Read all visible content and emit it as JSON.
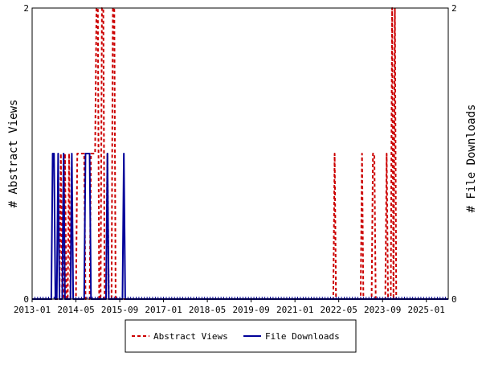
{
  "chart_data": {
    "type": "line",
    "y_left_label": "# Abstract Views",
    "y_right_label": "# File Downloads",
    "y_left_ticks": [
      "0",
      "2"
    ],
    "y_right_ticks": [
      "0",
      "2"
    ],
    "ylim": [
      0,
      2
    ],
    "x_tick_labels": [
      "2013-01",
      "2014-05",
      "2015-09",
      "2017-01",
      "2018-05",
      "2019-09",
      "2021-01",
      "2022-05",
      "2023-09",
      "2025-01"
    ],
    "x_tick_months": [
      0,
      16,
      32,
      48,
      64,
      80,
      96,
      112,
      128,
      144
    ],
    "xlim_months": [
      0,
      152
    ],
    "grid": false,
    "legend_position": "bottom-center",
    "series": [
      {
        "name": "Abstract Views",
        "color": "#cc0000",
        "style": "dashed",
        "points": [
          [
            0,
            0
          ],
          [
            10,
            0
          ],
          [
            10.5,
            1
          ],
          [
            11,
            0
          ],
          [
            11.5,
            0
          ],
          [
            12,
            1
          ],
          [
            12.5,
            0
          ],
          [
            13,
            0
          ],
          [
            13.5,
            1
          ],
          [
            14,
            0
          ],
          [
            16,
            0
          ],
          [
            16.5,
            1
          ],
          [
            17,
            1
          ],
          [
            18,
            1
          ],
          [
            19,
            1
          ],
          [
            19.5,
            0
          ],
          [
            21,
            0
          ],
          [
            21.5,
            1
          ],
          [
            22,
            1
          ],
          [
            23,
            1
          ],
          [
            23.5,
            2
          ],
          [
            24,
            2
          ],
          [
            24.5,
            0
          ],
          [
            25,
            0
          ],
          [
            25.5,
            2
          ],
          [
            26,
            2
          ],
          [
            26.5,
            0
          ],
          [
            27,
            0
          ],
          [
            27.5,
            1
          ],
          [
            28,
            0
          ],
          [
            29,
            0
          ],
          [
            29.5,
            2
          ],
          [
            30,
            2
          ],
          [
            30.5,
            0
          ],
          [
            31,
            0
          ],
          [
            32,
            0
          ],
          [
            40,
            0
          ],
          [
            96,
            0
          ],
          [
            110,
            0
          ],
          [
            110.5,
            1
          ],
          [
            111,
            0
          ],
          [
            120,
            0
          ],
          [
            120.5,
            1
          ],
          [
            121,
            0
          ],
          [
            124,
            0
          ],
          [
            124.5,
            1
          ],
          [
            125,
            1
          ],
          [
            125.5,
            0
          ],
          [
            129,
            0
          ],
          [
            129.5,
            1
          ],
          [
            130,
            0
          ],
          [
            131,
            0
          ],
          [
            131.5,
            2
          ],
          [
            132,
            0
          ],
          [
            132.5,
            2
          ],
          [
            133,
            0
          ],
          [
            140,
            0
          ],
          [
            152,
            0
          ]
        ]
      },
      {
        "name": "File Downloads",
        "color": "#000099",
        "style": "solid",
        "points": [
          [
            0,
            0
          ],
          [
            7,
            0
          ],
          [
            7.5,
            1
          ],
          [
            8,
            1
          ],
          [
            8.5,
            0
          ],
          [
            9,
            0
          ],
          [
            9.5,
            1
          ],
          [
            10,
            0
          ],
          [
            11,
            0
          ],
          [
            11.5,
            1
          ],
          [
            12,
            0
          ],
          [
            14,
            0
          ],
          [
            14.5,
            1
          ],
          [
            15,
            0
          ],
          [
            19,
            0
          ],
          [
            19.5,
            1
          ],
          [
            20,
            1
          ],
          [
            21,
            1
          ],
          [
            21.5,
            0
          ],
          [
            27,
            0
          ],
          [
            27.5,
            1
          ],
          [
            28,
            0
          ],
          [
            33,
            0
          ],
          [
            33.5,
            1
          ],
          [
            34,
            0
          ],
          [
            40,
            0
          ],
          [
            152,
            0
          ]
        ]
      }
    ]
  }
}
